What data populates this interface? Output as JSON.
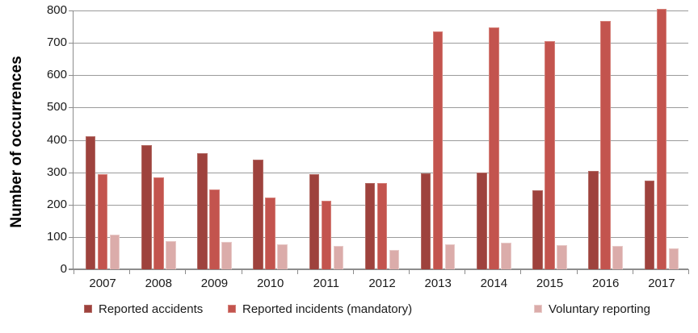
{
  "chart_data": {
    "type": "bar",
    "title": "",
    "ylabel": "Number of occurrences",
    "xlabel": "",
    "categories": [
      "2007",
      "2008",
      "2009",
      "2010",
      "2011",
      "2012",
      "2013",
      "2014",
      "2015",
      "2016",
      "2017"
    ],
    "series": [
      {
        "name": "Reported accidents",
        "color": "#9E423D",
        "edge": "#B26A64",
        "values": [
          410,
          383,
          358,
          338,
          295,
          267,
          297,
          300,
          245,
          305,
          274
        ]
      },
      {
        "name": "Reported incidents (mandatory)",
        "color": "#C3544E",
        "edge": "#D5817A",
        "values": [
          294,
          283,
          246,
          221,
          213,
          267,
          736,
          748,
          706,
          767,
          805
        ]
      },
      {
        "name": "Voluntary reporting",
        "color": "#DBACAA",
        "edge": "#E8CAC8",
        "values": [
          108,
          88,
          84,
          78,
          72,
          60,
          78,
          81,
          76,
          72,
          64
        ]
      }
    ],
    "ylim": [
      0,
      800
    ],
    "yticks": [
      0,
      100,
      200,
      300,
      400,
      500,
      600,
      700,
      800
    ],
    "grid": true,
    "legend_position": "bottom",
    "gridline_color": "#9B9B9B",
    "axis_color": "#8C8C8C",
    "text_color": "#1a1a1a",
    "background": "#FFFFFF"
  }
}
